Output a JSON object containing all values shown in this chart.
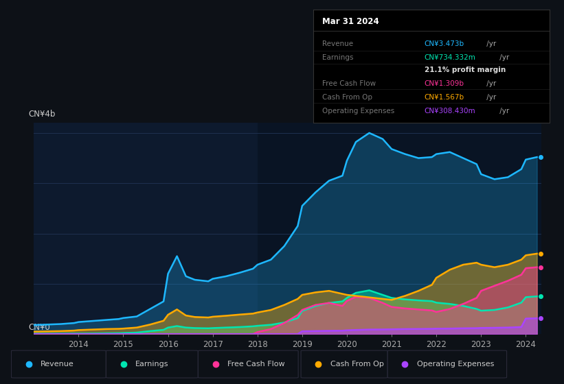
{
  "bg_color": "#0d1117",
  "chart_bg": "#0d1a2e",
  "ylabel": "CN¥4b",
  "y0label": "CN¥0",
  "colors": {
    "revenue": "#1eb8ff",
    "earnings": "#00e5b0",
    "free_cash_flow": "#ff3399",
    "cash_from_op": "#ffaa00",
    "operating_expenses": "#aa44ff"
  },
  "legend_labels": [
    "Revenue",
    "Earnings",
    "Free Cash Flow",
    "Cash From Op",
    "Operating Expenses"
  ],
  "tooltip_title": "Mar 31 2024",
  "tooltip_rows": [
    {
      "label": "Revenue",
      "value": "CN¥3.473b /yr",
      "vcolor": "#1eb8ff",
      "label_color": "#777777"
    },
    {
      "label": "Earnings",
      "value": "CN¥734.332m /yr",
      "vcolor": "#00e5b0",
      "label_color": "#777777"
    },
    {
      "label": "",
      "value": "21.1% profit margin",
      "vcolor": "#dddddd",
      "label_color": "#777777"
    },
    {
      "label": "Free Cash Flow",
      "value": "CN¥1.309b /yr",
      "vcolor": "#ff3399",
      "label_color": "#777777"
    },
    {
      "label": "Cash From Op",
      "value": "CN¥1.567b /yr",
      "vcolor": "#ffaa00",
      "label_color": "#777777"
    },
    {
      "label": "Operating Expenses",
      "value": "CN¥308.430m /yr",
      "vcolor": "#aa44ff",
      "label_color": "#777777"
    }
  ],
  "x_years": [
    2013.0,
    2013.3,
    2013.6,
    2013.9,
    2014.0,
    2014.3,
    2014.6,
    2014.9,
    2015.0,
    2015.3,
    2015.6,
    2015.9,
    2016.0,
    2016.2,
    2016.4,
    2016.6,
    2016.9,
    2017.0,
    2017.3,
    2017.6,
    2017.9,
    2018.0,
    2018.3,
    2018.6,
    2018.9,
    2019.0,
    2019.3,
    2019.6,
    2019.9,
    2020.0,
    2020.2,
    2020.5,
    2020.8,
    2021.0,
    2021.3,
    2021.6,
    2021.9,
    2022.0,
    2022.3,
    2022.6,
    2022.9,
    2023.0,
    2023.3,
    2023.6,
    2023.9,
    2024.0,
    2024.25
  ],
  "revenue": [
    0.18,
    0.19,
    0.2,
    0.22,
    0.24,
    0.26,
    0.28,
    0.3,
    0.32,
    0.35,
    0.5,
    0.65,
    1.2,
    1.55,
    1.15,
    1.08,
    1.05,
    1.1,
    1.15,
    1.22,
    1.3,
    1.38,
    1.48,
    1.75,
    2.15,
    2.55,
    2.82,
    3.05,
    3.15,
    3.45,
    3.82,
    4.0,
    3.88,
    3.68,
    3.58,
    3.5,
    3.52,
    3.58,
    3.62,
    3.5,
    3.38,
    3.18,
    3.08,
    3.12,
    3.28,
    3.47,
    3.52
  ],
  "earnings": [
    0.008,
    0.008,
    0.009,
    0.01,
    0.01,
    0.012,
    0.015,
    0.018,
    0.022,
    0.03,
    0.06,
    0.085,
    0.13,
    0.16,
    0.13,
    0.12,
    0.115,
    0.12,
    0.13,
    0.14,
    0.155,
    0.165,
    0.185,
    0.23,
    0.32,
    0.46,
    0.56,
    0.62,
    0.65,
    0.72,
    0.82,
    0.87,
    0.78,
    0.72,
    0.69,
    0.67,
    0.655,
    0.625,
    0.6,
    0.56,
    0.5,
    0.465,
    0.48,
    0.53,
    0.625,
    0.734,
    0.75
  ],
  "free_cash_flow": [
    0.0,
    0.0,
    0.0,
    0.0,
    0.0,
    0.0,
    0.0,
    0.0,
    0.0,
    0.0,
    0.0,
    0.0,
    0.0,
    0.0,
    0.0,
    0.0,
    0.0,
    0.0,
    0.0,
    0.0,
    0.0,
    0.04,
    0.1,
    0.22,
    0.38,
    0.48,
    0.58,
    0.62,
    0.56,
    0.66,
    0.74,
    0.72,
    0.62,
    0.54,
    0.51,
    0.49,
    0.47,
    0.44,
    0.5,
    0.6,
    0.72,
    0.86,
    0.96,
    1.06,
    1.18,
    1.31,
    1.33
  ],
  "cash_from_op": [
    0.05,
    0.055,
    0.06,
    0.07,
    0.08,
    0.09,
    0.1,
    0.105,
    0.11,
    0.13,
    0.19,
    0.265,
    0.385,
    0.49,
    0.37,
    0.34,
    0.33,
    0.345,
    0.365,
    0.388,
    0.408,
    0.43,
    0.48,
    0.58,
    0.7,
    0.78,
    0.83,
    0.86,
    0.8,
    0.78,
    0.76,
    0.73,
    0.7,
    0.68,
    0.76,
    0.86,
    0.98,
    1.12,
    1.28,
    1.38,
    1.42,
    1.38,
    1.33,
    1.38,
    1.48,
    1.567,
    1.6
  ],
  "operating_expenses": [
    0.0,
    0.0,
    0.0,
    0.0,
    0.0,
    0.0,
    0.0,
    0.0,
    0.0,
    0.0,
    0.0,
    0.0,
    0.0,
    0.0,
    0.0,
    0.0,
    0.0,
    0.0,
    0.0,
    0.0,
    0.0,
    0.0,
    0.0,
    0.0,
    0.0,
    0.055,
    0.06,
    0.065,
    0.068,
    0.075,
    0.082,
    0.09,
    0.092,
    0.095,
    0.1,
    0.102,
    0.105,
    0.108,
    0.11,
    0.115,
    0.118,
    0.122,
    0.125,
    0.13,
    0.14,
    0.308,
    0.315
  ],
  "shaded_x_start": 2018.0,
  "ylim": [
    0,
    4.2
  ],
  "xticks": [
    2014,
    2015,
    2016,
    2017,
    2018,
    2019,
    2020,
    2021,
    2022,
    2023,
    2024
  ]
}
